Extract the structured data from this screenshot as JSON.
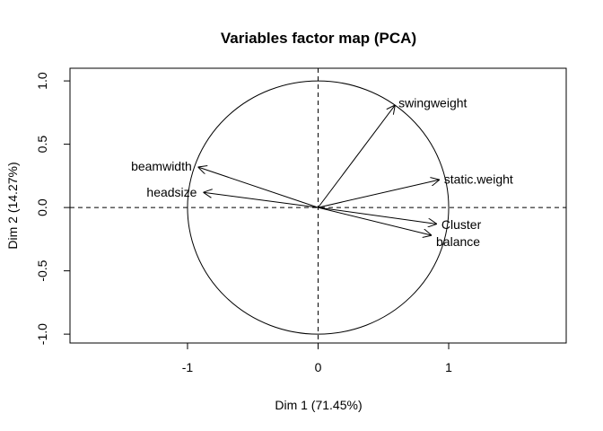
{
  "chart_data": {
    "type": "scatter",
    "title": "Variables factor map (PCA)",
    "xlabel": "Dim 1 (71.45%)",
    "ylabel": "Dim 2 (14.27%)",
    "xlim": [
      -1.9,
      1.9
    ],
    "ylim": [
      -1.07,
      1.1
    ],
    "x_ticks": [
      {
        "value": -1,
        "label": "-1"
      },
      {
        "value": 0,
        "label": "0"
      },
      {
        "value": 1,
        "label": "1"
      }
    ],
    "y_ticks": [
      {
        "value": 1.0,
        "label": "1.0"
      },
      {
        "value": 0.5,
        "label": "0.5"
      },
      {
        "value": 0.0,
        "label": "0.0"
      },
      {
        "value": -0.5,
        "label": "-0.5"
      },
      {
        "value": -1.0,
        "label": "-1.0"
      }
    ],
    "unit_circle": true,
    "reference_lines": {
      "x": 0,
      "y": 0,
      "style": "dashed"
    },
    "grid": false,
    "variables": [
      {
        "name": "swingweight",
        "x": 0.59,
        "y": 0.81,
        "anchor": "start"
      },
      {
        "name": "static.weight",
        "x": 0.93,
        "y": 0.22,
        "anchor": "start"
      },
      {
        "name": "beamwidth",
        "x": -0.92,
        "y": 0.32,
        "anchor": "end"
      },
      {
        "name": "headsize",
        "x": -0.88,
        "y": 0.12,
        "anchor": "end"
      },
      {
        "name": "Cluster",
        "x": 0.91,
        "y": -0.13,
        "anchor": "start"
      },
      {
        "name": "balance",
        "x": 0.87,
        "y": -0.22,
        "anchor": "start"
      }
    ]
  }
}
